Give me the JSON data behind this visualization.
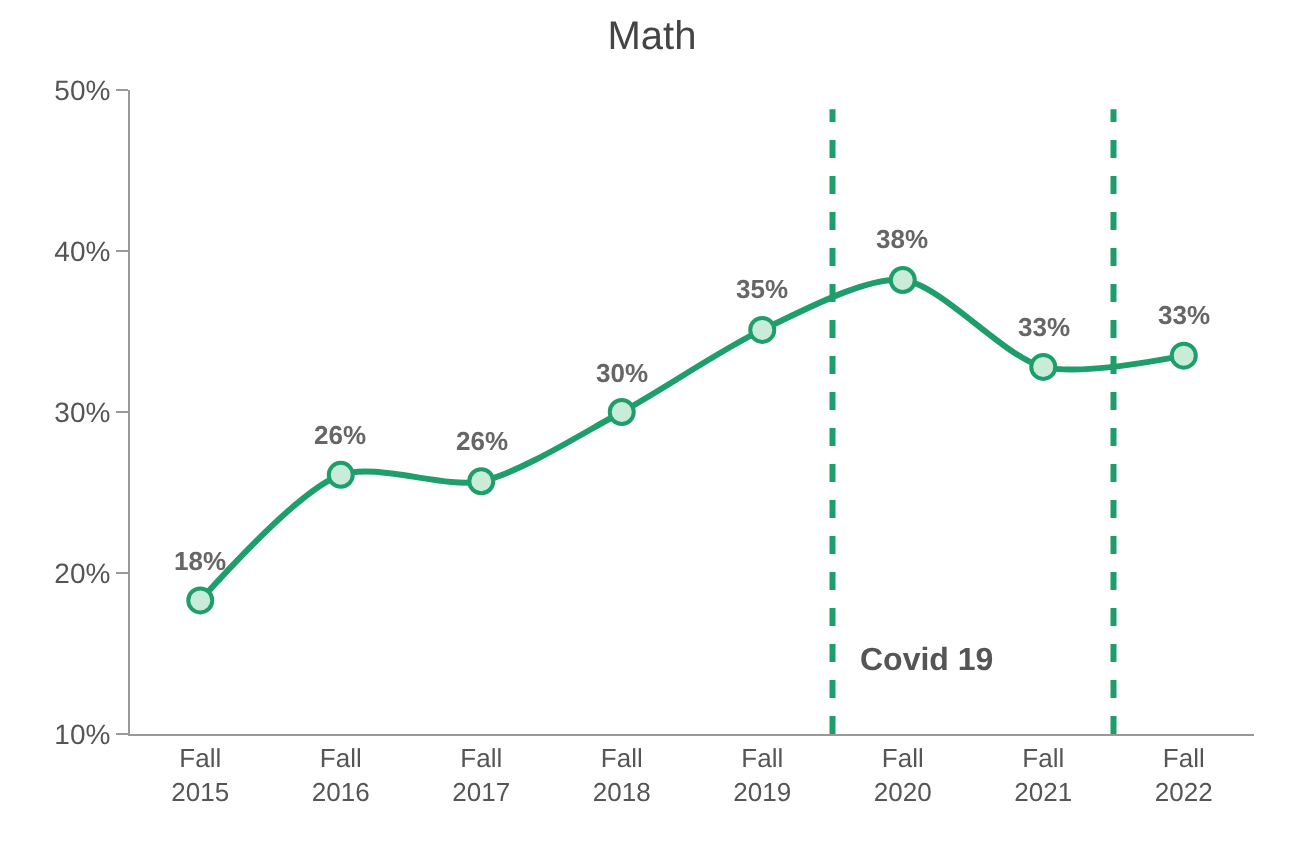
{
  "chart_data": {
    "type": "line",
    "title": "Math",
    "categories": [
      "Fall 2015",
      "Fall 2016",
      "Fall 2017",
      "Fall 2018",
      "Fall 2019",
      "Fall 2020",
      "Fall 2021",
      "Fall 2022"
    ],
    "series": [
      {
        "color": "#1e9e6a",
        "values": [
          18.3,
          26.1,
          25.7,
          30,
          35.1,
          38.2,
          32.8,
          33.5
        ],
        "value_labels": [
          "18%",
          "26%",
          "26%",
          "30%",
          "35%",
          "38%",
          "33%",
          "33%"
        ]
      }
    ],
    "ylim": [
      10,
      50
    ],
    "yticks": [
      {
        "value": 10,
        "label": "10%"
      },
      {
        "value": 20,
        "label": "20%"
      },
      {
        "value": 30,
        "label": "30%"
      },
      {
        "value": 40,
        "label": "40%"
      },
      {
        "value": 50,
        "label": "50%"
      }
    ],
    "annotations": [
      "Covid 19"
    ],
    "grid": false,
    "marker": "circle",
    "line_style": "solid"
  }
}
